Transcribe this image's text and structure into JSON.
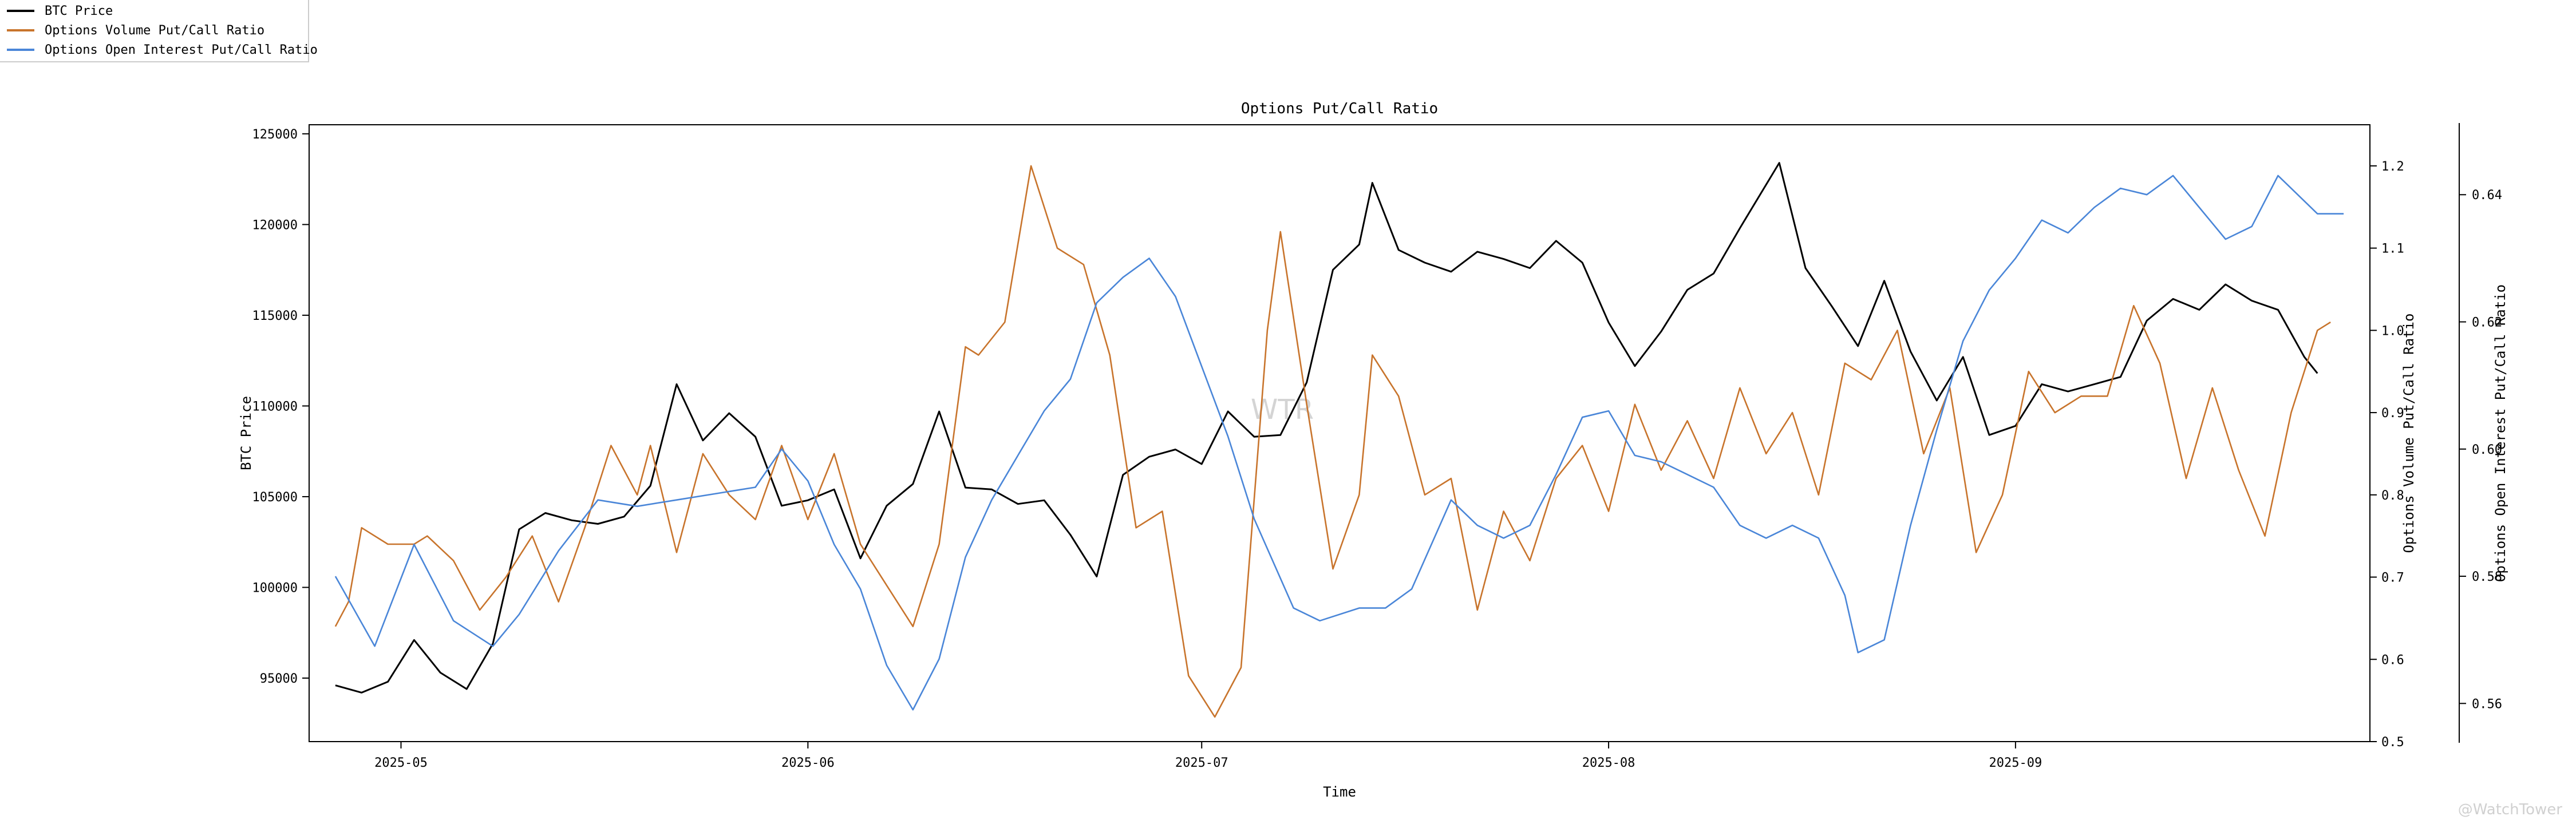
{
  "legend": {
    "items": [
      {
        "label": "BTC Price",
        "color": "#000000"
      },
      {
        "label": "Options Volume Put/Call Ratio",
        "color": "#c8742c"
      },
      {
        "label": "Options Open Interest Put/Call Ratio",
        "color": "#4a86d8"
      }
    ]
  },
  "watermark": "@WatchTower",
  "chart_data": {
    "type": "line",
    "title": "Options Put/Call Ratio",
    "xlabel": "Time",
    "ylabel_left": "BTC Price",
    "ylabel_right1": "Options Volume Put/Call Ratio",
    "ylabel_right2": "Options Open Interest Put/Call Ratio",
    "center_watermark": "WTR",
    "x_range": [
      "2025-04-24",
      "2025-09-28"
    ],
    "x_ticks": [
      "2025-05",
      "2025-06",
      "2025-07",
      "2025-08",
      "2025-09"
    ],
    "y_left_range": [
      91500,
      125500
    ],
    "y_left_ticks": [
      "95000",
      "100000",
      "105000",
      "110000",
      "115000",
      "120000",
      "125000"
    ],
    "y_right1_range": [
      0.5,
      1.25
    ],
    "y_right1_ticks": [
      "0.5",
      "0.6",
      "0.7",
      "0.8",
      "0.9",
      "1.0",
      "1.1",
      "1.2"
    ],
    "y_right2_range": [
      0.554,
      0.651
    ],
    "y_right2_ticks": [
      "0.56",
      "0.58",
      "0.60",
      "0.62",
      "0.64"
    ],
    "series": [
      {
        "name": "BTC Price",
        "axis": "left",
        "color": "#000000",
        "points": [
          [
            "2025-04-26",
            94600
          ],
          [
            "2025-04-28",
            94200
          ],
          [
            "2025-04-30",
            94800
          ],
          [
            "2025-05-02",
            97100
          ],
          [
            "2025-05-04",
            95300
          ],
          [
            "2025-05-06",
            94400
          ],
          [
            "2025-05-08",
            96900
          ],
          [
            "2025-05-10",
            103200
          ],
          [
            "2025-05-12",
            104100
          ],
          [
            "2025-05-14",
            103700
          ],
          [
            "2025-05-16",
            103500
          ],
          [
            "2025-05-18",
            103900
          ],
          [
            "2025-05-20",
            105600
          ],
          [
            "2025-05-22",
            111200
          ],
          [
            "2025-05-24",
            108100
          ],
          [
            "2025-05-26",
            109600
          ],
          [
            "2025-05-28",
            108300
          ],
          [
            "2025-05-30",
            104500
          ],
          [
            "2025-06-01",
            104800
          ],
          [
            "2025-06-03",
            105400
          ],
          [
            "2025-06-05",
            101600
          ],
          [
            "2025-06-07",
            104500
          ],
          [
            "2025-06-09",
            105700
          ],
          [
            "2025-06-11",
            109700
          ],
          [
            "2025-06-13",
            105500
          ],
          [
            "2025-06-15",
            105400
          ],
          [
            "2025-06-17",
            104600
          ],
          [
            "2025-06-19",
            104800
          ],
          [
            "2025-06-21",
            102900
          ],
          [
            "2025-06-23",
            100600
          ],
          [
            "2025-06-25",
            106200
          ],
          [
            "2025-06-27",
            107200
          ],
          [
            "2025-06-29",
            107600
          ],
          [
            "2025-07-01",
            106800
          ],
          [
            "2025-07-03",
            109700
          ],
          [
            "2025-07-05",
            108300
          ],
          [
            "2025-07-07",
            108400
          ],
          [
            "2025-07-09",
            111300
          ],
          [
            "2025-07-11",
            117500
          ],
          [
            "2025-07-13",
            118900
          ],
          [
            "2025-07-14",
            122300
          ],
          [
            "2025-07-16",
            118600
          ],
          [
            "2025-07-18",
            117900
          ],
          [
            "2025-07-20",
            117400
          ],
          [
            "2025-07-22",
            118500
          ],
          [
            "2025-07-24",
            118100
          ],
          [
            "2025-07-26",
            117600
          ],
          [
            "2025-07-28",
            119100
          ],
          [
            "2025-07-30",
            117900
          ],
          [
            "2025-08-01",
            114600
          ],
          [
            "2025-08-03",
            112200
          ],
          [
            "2025-08-05",
            114100
          ],
          [
            "2025-08-07",
            116400
          ],
          [
            "2025-08-09",
            117300
          ],
          [
            "2025-08-11",
            119800
          ],
          [
            "2025-08-14",
            123400
          ],
          [
            "2025-08-16",
            117600
          ],
          [
            "2025-08-18",
            115500
          ],
          [
            "2025-08-20",
            113300
          ],
          [
            "2025-08-22",
            116900
          ],
          [
            "2025-08-24",
            113000
          ],
          [
            "2025-08-26",
            110300
          ],
          [
            "2025-08-28",
            112700
          ],
          [
            "2025-08-30",
            108400
          ],
          [
            "2025-09-01",
            108900
          ],
          [
            "2025-09-03",
            111200
          ],
          [
            "2025-09-05",
            110800
          ],
          [
            "2025-09-07",
            111200
          ],
          [
            "2025-09-09",
            111600
          ],
          [
            "2025-09-11",
            114700
          ],
          [
            "2025-09-13",
            115900
          ],
          [
            "2025-09-15",
            115300
          ],
          [
            "2025-09-17",
            116700
          ],
          [
            "2025-09-19",
            115800
          ],
          [
            "2025-09-21",
            115300
          ],
          [
            "2025-09-23",
            112700
          ],
          [
            "2025-09-24",
            111800
          ]
        ]
      },
      {
        "name": "Options Volume Put/Call Ratio",
        "axis": "right1",
        "color": "#c8742c",
        "points": [
          [
            "2025-04-26",
            0.64
          ],
          [
            "2025-04-27",
            0.67
          ],
          [
            "2025-04-28",
            0.76
          ],
          [
            "2025-04-30",
            0.74
          ],
          [
            "2025-05-02",
            0.74
          ],
          [
            "2025-05-03",
            0.75
          ],
          [
            "2025-05-05",
            0.72
          ],
          [
            "2025-05-07",
            0.66
          ],
          [
            "2025-05-09",
            0.7
          ],
          [
            "2025-05-11",
            0.75
          ],
          [
            "2025-05-13",
            0.67
          ],
          [
            "2025-05-15",
            0.76
          ],
          [
            "2025-05-17",
            0.86
          ],
          [
            "2025-05-19",
            0.8
          ],
          [
            "2025-05-20",
            0.86
          ],
          [
            "2025-05-22",
            0.73
          ],
          [
            "2025-05-24",
            0.85
          ],
          [
            "2025-05-26",
            0.8
          ],
          [
            "2025-05-28",
            0.77
          ],
          [
            "2025-05-30",
            0.86
          ],
          [
            "2025-06-01",
            0.77
          ],
          [
            "2025-06-03",
            0.85
          ],
          [
            "2025-06-05",
            0.74
          ],
          [
            "2025-06-07",
            0.69
          ],
          [
            "2025-06-09",
            0.64
          ],
          [
            "2025-06-11",
            0.74
          ],
          [
            "2025-06-13",
            0.98
          ],
          [
            "2025-06-14",
            0.97
          ],
          [
            "2025-06-16",
            1.01
          ],
          [
            "2025-06-18",
            1.2
          ],
          [
            "2025-06-20",
            1.1
          ],
          [
            "2025-06-22",
            1.08
          ],
          [
            "2025-06-24",
            0.97
          ],
          [
            "2025-06-26",
            0.76
          ],
          [
            "2025-06-28",
            0.78
          ],
          [
            "2025-06-30",
            0.58
          ],
          [
            "2025-07-02",
            0.53
          ],
          [
            "2025-07-04",
            0.59
          ],
          [
            "2025-07-06",
            1.0
          ],
          [
            "2025-07-07",
            1.12
          ],
          [
            "2025-07-09",
            0.91
          ],
          [
            "2025-07-11",
            0.71
          ],
          [
            "2025-07-13",
            0.8
          ],
          [
            "2025-07-14",
            0.97
          ],
          [
            "2025-07-16",
            0.92
          ],
          [
            "2025-07-18",
            0.8
          ],
          [
            "2025-07-20",
            0.82
          ],
          [
            "2025-07-22",
            0.66
          ],
          [
            "2025-07-24",
            0.78
          ],
          [
            "2025-07-26",
            0.72
          ],
          [
            "2025-07-28",
            0.82
          ],
          [
            "2025-07-30",
            0.86
          ],
          [
            "2025-08-01",
            0.78
          ],
          [
            "2025-08-03",
            0.91
          ],
          [
            "2025-08-05",
            0.83
          ],
          [
            "2025-08-07",
            0.89
          ],
          [
            "2025-08-09",
            0.82
          ],
          [
            "2025-08-11",
            0.93
          ],
          [
            "2025-08-13",
            0.85
          ],
          [
            "2025-08-15",
            0.9
          ],
          [
            "2025-08-17",
            0.8
          ],
          [
            "2025-08-19",
            0.96
          ],
          [
            "2025-08-21",
            0.94
          ],
          [
            "2025-08-23",
            1.0
          ],
          [
            "2025-08-25",
            0.85
          ],
          [
            "2025-08-27",
            0.93
          ],
          [
            "2025-08-29",
            0.73
          ],
          [
            "2025-08-31",
            0.8
          ],
          [
            "2025-09-02",
            0.95
          ],
          [
            "2025-09-04",
            0.9
          ],
          [
            "2025-09-06",
            0.92
          ],
          [
            "2025-09-08",
            0.92
          ],
          [
            "2025-09-10",
            1.03
          ],
          [
            "2025-09-12",
            0.96
          ],
          [
            "2025-09-14",
            0.82
          ],
          [
            "2025-09-16",
            0.93
          ],
          [
            "2025-09-18",
            0.83
          ],
          [
            "2025-09-20",
            0.75
          ],
          [
            "2025-09-22",
            0.9
          ],
          [
            "2025-09-24",
            1.0
          ],
          [
            "2025-09-25",
            1.01
          ]
        ]
      },
      {
        "name": "Options Open Interest Put/Call Ratio",
        "axis": "right2",
        "color": "#4a86d8",
        "points": [
          [
            "2025-04-26",
            0.58
          ],
          [
            "2025-04-29",
            0.569
          ],
          [
            "2025-05-02",
            0.585
          ],
          [
            "2025-05-05",
            0.573
          ],
          [
            "2025-05-08",
            0.569
          ],
          [
            "2025-05-10",
            0.574
          ],
          [
            "2025-05-13",
            0.584
          ],
          [
            "2025-05-16",
            0.592
          ],
          [
            "2025-05-19",
            0.591
          ],
          [
            "2025-05-22",
            0.592
          ],
          [
            "2025-05-25",
            0.593
          ],
          [
            "2025-05-28",
            0.594
          ],
          [
            "2025-05-30",
            0.6
          ],
          [
            "2025-06-01",
            0.595
          ],
          [
            "2025-06-03",
            0.585
          ],
          [
            "2025-06-05",
            0.578
          ],
          [
            "2025-06-07",
            0.566
          ],
          [
            "2025-06-09",
            0.559
          ],
          [
            "2025-06-11",
            0.567
          ],
          [
            "2025-06-13",
            0.583
          ],
          [
            "2025-06-15",
            0.592
          ],
          [
            "2025-06-17",
            0.599
          ],
          [
            "2025-06-19",
            0.606
          ],
          [
            "2025-06-21",
            0.611
          ],
          [
            "2025-06-23",
            0.623
          ],
          [
            "2025-06-25",
            0.627
          ],
          [
            "2025-06-27",
            0.63
          ],
          [
            "2025-06-29",
            0.624
          ],
          [
            "2025-07-01",
            0.613
          ],
          [
            "2025-07-03",
            0.602
          ],
          [
            "2025-07-05",
            0.589
          ],
          [
            "2025-07-08",
            0.575
          ],
          [
            "2025-07-10",
            0.573
          ],
          [
            "2025-07-13",
            0.575
          ],
          [
            "2025-07-15",
            0.575
          ],
          [
            "2025-07-17",
            0.578
          ],
          [
            "2025-07-20",
            0.592
          ],
          [
            "2025-07-22",
            0.588
          ],
          [
            "2025-07-24",
            0.586
          ],
          [
            "2025-07-26",
            0.588
          ],
          [
            "2025-07-28",
            0.596
          ],
          [
            "2025-07-30",
            0.605
          ],
          [
            "2025-08-01",
            0.606
          ],
          [
            "2025-08-03",
            0.599
          ],
          [
            "2025-08-05",
            0.598
          ],
          [
            "2025-08-07",
            0.596
          ],
          [
            "2025-08-09",
            0.594
          ],
          [
            "2025-08-11",
            0.588
          ],
          [
            "2025-08-13",
            0.586
          ],
          [
            "2025-08-15",
            0.588
          ],
          [
            "2025-08-17",
            0.586
          ],
          [
            "2025-08-19",
            0.577
          ],
          [
            "2025-08-20",
            0.568
          ],
          [
            "2025-08-22",
            0.57
          ],
          [
            "2025-08-24",
            0.588
          ],
          [
            "2025-08-26",
            0.603
          ],
          [
            "2025-08-28",
            0.617
          ],
          [
            "2025-08-30",
            0.625
          ],
          [
            "2025-09-01",
            0.63
          ],
          [
            "2025-09-03",
            0.636
          ],
          [
            "2025-09-05",
            0.634
          ],
          [
            "2025-09-07",
            0.638
          ],
          [
            "2025-09-09",
            0.641
          ],
          [
            "2025-09-11",
            0.64
          ],
          [
            "2025-09-13",
            0.643
          ],
          [
            "2025-09-15",
            0.638
          ],
          [
            "2025-09-17",
            0.633
          ],
          [
            "2025-09-19",
            0.635
          ],
          [
            "2025-09-21",
            0.643
          ],
          [
            "2025-09-22",
            0.641
          ],
          [
            "2025-09-24",
            0.637
          ],
          [
            "2025-09-26",
            0.637
          ]
        ]
      }
    ]
  }
}
